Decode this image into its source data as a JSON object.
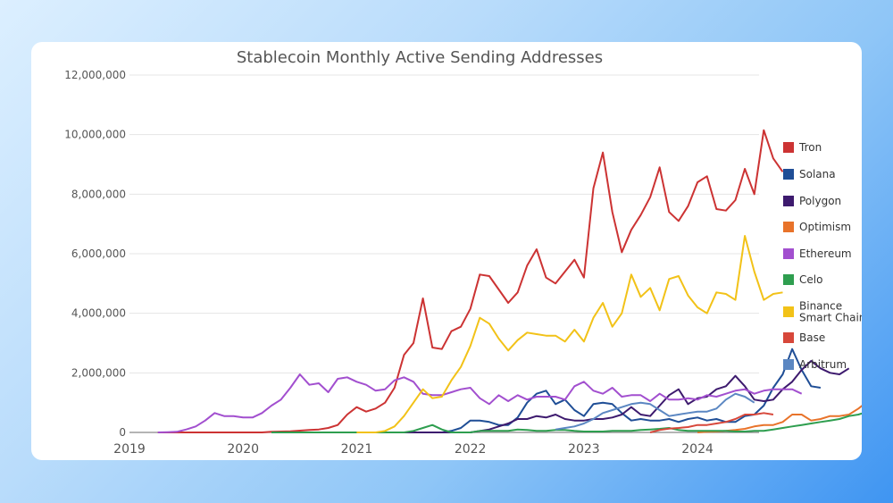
{
  "chart_data": {
    "type": "line",
    "title": "Stablecoin Monthly Active Sending Addresses",
    "xlabel": "",
    "ylabel": "",
    "ylim": [
      0,
      12000000
    ],
    "yticks": [
      "0",
      "2,000,000",
      "4,000,000",
      "6,000,000",
      "8,000,000",
      "10,000,000",
      "12,000,000"
    ],
    "xticks": [
      "2019",
      "2020",
      "2021",
      "2022",
      "2023",
      "2024"
    ],
    "grid": true,
    "legend_position": "right",
    "start_year": 2019,
    "series": [
      {
        "name": "Tron",
        "color": "#cc3333",
        "start_month": 3,
        "values": [
          0,
          0,
          0,
          0,
          0,
          0,
          0,
          0,
          0,
          0,
          0,
          0,
          20000,
          30000,
          40000,
          60000,
          80000,
          100000,
          150000,
          250000,
          600000,
          850000,
          700000,
          800000,
          1000000,
          1500000,
          2600000,
          3000000,
          4500000,
          2850000,
          2800000,
          3400000,
          3550000,
          4150000,
          5300000,
          5250000,
          4800000,
          4350000,
          4700000,
          5600000,
          6150000,
          5200000,
          5000000,
          5400000,
          5800000,
          5200000,
          8200000,
          9400000,
          7400000,
          6050000,
          6800000,
          7300000,
          7900000,
          8900000,
          7400000,
          7100000,
          7600000,
          8400000,
          8600000,
          7500000,
          7450000,
          7800000,
          8850000,
          8000000,
          10150000,
          9200000,
          8750000
        ]
      },
      {
        "name": "Solana",
        "color": "#1f4e96",
        "start_month": 30,
        "values": [
          0,
          0,
          0,
          0,
          50000,
          150000,
          400000,
          400000,
          350000,
          250000,
          250000,
          500000,
          1000000,
          1300000,
          1400000,
          950000,
          1100000,
          750000,
          550000,
          950000,
          1000000,
          950000,
          650000,
          400000,
          450000,
          400000,
          400000,
          450000,
          350000,
          450000,
          500000,
          400000,
          450000,
          350000,
          350000,
          550000,
          600000,
          900000,
          1500000,
          1950000,
          2800000,
          2100000,
          1550000,
          1500000
        ]
      },
      {
        "name": "Polygon",
        "color": "#3d1a6e",
        "start_month": 27,
        "values": [
          0,
          0,
          0,
          0,
          0,
          0,
          0,
          0,
          0,
          0,
          50000,
          100000,
          200000,
          300000,
          450000,
          450000,
          550000,
          500000,
          600000,
          450000,
          400000,
          400000,
          450000,
          450000,
          500000,
          600000,
          850000,
          600000,
          550000,
          900000,
          1250000,
          1450000,
          950000,
          1150000,
          1200000,
          1450000,
          1550000,
          1900000,
          1550000,
          1100000,
          1050000,
          1100000,
          1450000,
          1700000,
          2100000,
          2400000,
          2150000,
          2000000,
          1950000,
          2150000
        ]
      },
      {
        "name": "Optimism",
        "color": "#e8732a",
        "start_month": 60,
        "values": [
          0,
          20000,
          30000,
          50000,
          80000,
          120000,
          200000,
          250000,
          250000,
          350000,
          600000,
          600000,
          400000,
          450000,
          550000,
          550000,
          600000,
          800000,
          1050000,
          1400000,
          1150000,
          900000
        ]
      },
      {
        "name": "Ethereum",
        "color": "#a24fcf",
        "start_month": 3,
        "values": [
          0,
          10000,
          20000,
          100000,
          200000,
          400000,
          650000,
          550000,
          550000,
          500000,
          500000,
          650000,
          900000,
          1100000,
          1500000,
          1950000,
          1600000,
          1650000,
          1350000,
          1800000,
          1850000,
          1700000,
          1600000,
          1400000,
          1450000,
          1750000,
          1850000,
          1700000,
          1300000,
          1250000,
          1250000,
          1350000,
          1450000,
          1500000,
          1150000,
          950000,
          1250000,
          1050000,
          1250000,
          1100000,
          1200000,
          1200000,
          1200000,
          1100000,
          1550000,
          1700000,
          1400000,
          1300000,
          1500000,
          1200000,
          1250000,
          1250000,
          1050000,
          1300000,
          1100000,
          1100000,
          1150000,
          1100000,
          1250000,
          1200000,
          1300000,
          1400000,
          1450000,
          1300000,
          1400000,
          1450000,
          1450000,
          1450000,
          1300000
        ]
      },
      {
        "name": "Celo",
        "color": "#2e9e4f",
        "start_month": 15,
        "values": [
          0,
          0,
          0,
          0,
          0,
          0,
          0,
          0,
          0,
          0,
          0,
          0,
          0,
          0,
          0,
          50000,
          150000,
          250000,
          100000,
          0,
          0,
          0,
          50000,
          50000,
          50000,
          50000,
          100000,
          80000,
          50000,
          50000,
          80000,
          80000,
          50000,
          30000,
          30000,
          30000,
          50000,
          50000,
          50000,
          80000,
          100000,
          120000,
          150000,
          80000,
          50000,
          50000,
          50000,
          50000,
          50000,
          30000,
          30000,
          50000,
          50000,
          100000,
          150000,
          200000,
          250000,
          300000,
          350000,
          400000,
          450000,
          550000,
          600000,
          700000,
          1000000,
          1100000,
          950000
        ]
      },
      {
        "name": "Binance Smart Chain",
        "color": "#f2c218",
        "start_month": 24,
        "values": [
          0,
          0,
          0,
          50000,
          200000,
          550000,
          1000000,
          1450000,
          1150000,
          1200000,
          1750000,
          2200000,
          2900000,
          3850000,
          3650000,
          3150000,
          2750000,
          3100000,
          3350000,
          3300000,
          3250000,
          3250000,
          3050000,
          3450000,
          3050000,
          3850000,
          4350000,
          3550000,
          4000000,
          5300000,
          4550000,
          4850000,
          4100000,
          5150000,
          5250000,
          4600000,
          4200000,
          4000000,
          4700000,
          4650000,
          4450000,
          6600000,
          5400000,
          4450000,
          4650000,
          4700000
        ]
      },
      {
        "name": "Base",
        "color": "#d7473a",
        "start_month": 55,
        "values": [
          0,
          80000,
          130000,
          150000,
          180000,
          250000,
          250000,
          300000,
          350000,
          450000,
          600000,
          600000,
          650000,
          600000
        ]
      },
      {
        "name": "Arbitrum",
        "color": "#5b87c2",
        "start_month": 45,
        "values": [
          100000,
          150000,
          200000,
          300000,
          450000,
          650000,
          750000,
          850000,
          950000,
          1000000,
          950000,
          750000,
          550000,
          600000,
          650000,
          700000,
          700000,
          800000,
          1100000,
          1300000,
          1200000,
          1000000
        ]
      }
    ]
  }
}
